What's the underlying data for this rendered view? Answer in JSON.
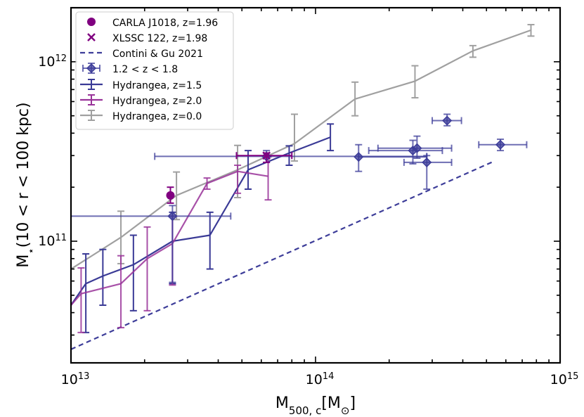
{
  "chart_data": {
    "type": "line",
    "xscale": "log",
    "yscale": "log",
    "xlim": [
      10000000000000.0,
      1000000000000000.0
    ],
    "ylim": [
      21000000000.0,
      2000000000000.0
    ],
    "xlabel": {
      "main": "M",
      "sub": "500, c",
      "unit_open": "[M",
      "unit_sym": "⊙",
      "unit_close": "]"
    },
    "ylabel": {
      "main": "M",
      "sub": "⋆",
      "rest": "(10 < r < 100 kpc)"
    },
    "x_ticks": [
      {
        "value": 10000000000000.0,
        "base": "10",
        "exp": "13"
      },
      {
        "value": 100000000000000.0,
        "base": "10",
        "exp": "14"
      },
      {
        "value": 1000000000000000.0,
        "base": "10",
        "exp": "15"
      }
    ],
    "y_ticks": [
      {
        "value": 100000000000.0,
        "base": "10",
        "exp": "11"
      },
      {
        "value": 1000000000000.0,
        "base": "10",
        "exp": "12"
      }
    ],
    "colors": {
      "carla": "#800080",
      "xlssc": "#800080",
      "contini": "#3d3d99",
      "obs": "#3d3d99",
      "hyd15": "#3a3a96",
      "hyd20": "#993399",
      "hyd00": "#a0a0a0"
    },
    "legend": [
      {
        "key": "carla",
        "label": "CARLA J1018, z=1.96",
        "marker": "circle"
      },
      {
        "key": "xlssc",
        "label": "XLSSC 122, z=1.98",
        "marker": "x"
      },
      {
        "key": "contini",
        "label": "Contini & Gu 2021",
        "marker": "dashed-line"
      },
      {
        "key": "obs",
        "label": "1.2 < z < 1.8",
        "marker": "diamond-errorbar"
      },
      {
        "key": "hyd15",
        "label": "Hydrangea, z=1.5",
        "marker": "errorbar-line"
      },
      {
        "key": "hyd20",
        "label": "Hydrangea, z=2.0",
        "marker": "errorbar-line"
      },
      {
        "key": "hyd00",
        "label": "Hydrangea, z=0.0",
        "marker": "errorbar-line"
      }
    ],
    "series": [
      {
        "key": "hyd00",
        "name": "Hydrangea, z=0.0",
        "x": [
          10000000000000.0,
          16000000000000.0,
          27000000000000.0,
          48000000000000.0,
          82000000000000.0,
          145000000000000.0,
          255000000000000.0,
          440000000000000.0,
          760000000000000.0
        ],
        "y": [
          70000000000.0,
          105000000000.0,
          180000000000.0,
          250000000000.0,
          350000000000.0,
          620000000000.0,
          780000000000.0,
          1150000000000.0,
          1500000000000.0
        ],
        "lo": [
          null,
          75000000000.0,
          132000000000.0,
          175000000000.0,
          280000000000.0,
          500000000000.0,
          630000000000.0,
          1060000000000.0,
          1390000000000.0
        ],
        "hi": [
          null,
          147000000000.0,
          243000000000.0,
          342000000000.0,
          510000000000.0,
          770000000000.0,
          950000000000.0,
          1230000000000.0,
          1610000000000.0
        ]
      },
      {
        "key": "hyd15",
        "name": "Hydrangea, z=1.5",
        "x": [
          10000000000000.0,
          11500000000000.0,
          13500000000000.0,
          18000000000000.0,
          26000000000000.0,
          37000000000000.0,
          53000000000000.0,
          78000000000000.0,
          115000000000000.0
        ],
        "y": [
          44000000000.0,
          58000000000.0,
          64000000000.0,
          74000000000.0,
          100000000000.0,
          108000000000.0,
          250000000000.0,
          310000000000.0,
          380000000000.0
        ],
        "lo": [
          null,
          31000000000.0,
          44000000000.0,
          41000000000.0,
          58000000000.0,
          70000000000.0,
          195000000000.0,
          265000000000.0,
          320000000000.0
        ],
        "hi": [
          null,
          85000000000.0,
          90000000000.0,
          108000000000.0,
          145000000000.0,
          145000000000.0,
          320000000000.0,
          340000000000.0,
          450000000000.0
        ]
      },
      {
        "key": "hyd20",
        "name": "Hydrangea, z=2.0",
        "x": [
          10000000000000.0,
          11000000000000.0,
          16000000000000.0,
          20500000000000.0,
          26000000000000.0,
          36000000000000.0,
          48000000000000.0,
          64000000000000.0
        ],
        "y": [
          44000000000.0,
          51000000000.0,
          58000000000.0,
          80000000000.0,
          97000000000.0,
          210000000000.0,
          245000000000.0,
          230000000000.0
        ],
        "lo": [
          null,
          31000000000.0,
          33000000000.0,
          41000000000.0,
          57000000000.0,
          195000000000.0,
          185000000000.0,
          170000000000.0
        ],
        "hi": [
          null,
          71000000000.0,
          83000000000.0,
          120000000000.0,
          138000000000.0,
          225000000000.0,
          265000000000.0,
          295000000000.0
        ]
      },
      {
        "key": "contini",
        "name": "Contini & Gu 2021",
        "style": "dashed",
        "x": [
          10000000000000.0,
          540000000000000.0
        ],
        "y": [
          25000000000.0,
          280000000000.0
        ]
      }
    ],
    "points": {
      "carla": {
        "name": "CARLA J1018, z=1.96",
        "x": 25500000000000.0,
        "y": 180000000000.0,
        "ylo": 163000000000.0,
        "yhi": 200000000000.0
      },
      "xlssc": {
        "name": "XLSSC 122, z=1.98",
        "x": 63000000000000.0,
        "y": 300000000000.0,
        "xlo": 47500000000000.0,
        "xhi": 80000000000000.0,
        "ylo": 275000000000.0,
        "yhi": 310000000000.0
      },
      "obs": [
        {
          "x": 26000000000000.0,
          "y": 138000000000.0,
          "xlo": 10000000000000.0,
          "xhi": 45000000000000.0,
          "ylo": 59000000000.0,
          "yhi": 158000000000.0
        },
        {
          "x": 63000000000000.0,
          "y": 297000000000.0,
          "xlo": 22000000000000.0,
          "xhi": 285000000000000.0,
          "ylo": 275000000000.0,
          "yhi": 320000000000.0
        },
        {
          "x": 150000000000000.0,
          "y": 295000000000.0,
          "xlo": 150000000000000.0,
          "xhi": 285000000000000.0,
          "ylo": 245000000000.0,
          "yhi": 345000000000.0
        },
        {
          "x": 250000000000000.0,
          "y": 320000000000.0,
          "xlo": 165000000000000.0,
          "xhi": 330000000000000.0,
          "ylo": 270000000000.0,
          "yhi": 365000000000.0
        },
        {
          "x": 260000000000000.0,
          "y": 330000000000.0,
          "xlo": 180000000000000.0,
          "xhi": 360000000000000.0,
          "ylo": 290000000000.0,
          "yhi": 385000000000.0
        },
        {
          "x": 285000000000000.0,
          "y": 275000000000.0,
          "xlo": 230000000000000.0,
          "xhi": 360000000000000.0,
          "ylo": 195000000000.0,
          "yhi": 300000000000.0
        },
        {
          "x": 345000000000000.0,
          "y": 470000000000.0,
          "xlo": 300000000000000.0,
          "xhi": 395000000000000.0,
          "ylo": 440000000000.0,
          "yhi": 510000000000.0
        },
        {
          "x": 570000000000000.0,
          "y": 345000000000.0,
          "xlo": 465000000000000.0,
          "xhi": 730000000000000.0,
          "ylo": 320000000000.0,
          "yhi": 370000000000.0
        }
      ]
    }
  }
}
